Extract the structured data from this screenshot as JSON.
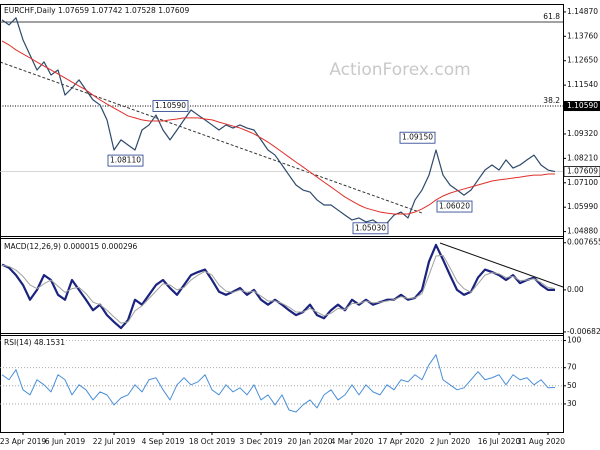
{
  "chart_data": [
    {
      "type": "line",
      "title": "EURCHF,Daily  1.07659 1.07742 1.07528 1.07609",
      "watermark": "ActionForex.com",
      "ylim": [
        1.0468,
        1.1523
      ],
      "yticks": [
        {
          "value": 1.1487,
          "label": "1.14870"
        },
        {
          "value": 1.1376,
          "label": "1.13760"
        },
        {
          "value": 1.1265,
          "label": "1.12650"
        },
        {
          "value": 1.1154,
          "label": "1.11540"
        },
        {
          "value": 1.0932,
          "label": "1.09320"
        },
        {
          "value": 1.0821,
          "label": "1.08210"
        },
        {
          "value": 1.071,
          "label": "1.07100"
        },
        {
          "value": 1.0599,
          "label": "1.05990"
        },
        {
          "value": 1.0488,
          "label": "1.04880"
        }
      ],
      "series": [
        {
          "color": "#2e4a6b",
          "width": 1.2,
          "values": [
            1.1451,
            1.1428,
            1.146,
            1.136,
            1.1291,
            1.1223,
            1.126,
            1.12,
            1.1223,
            1.1109,
            1.1141,
            1.1178,
            1.1132,
            1.1087,
            1.1064,
            1.0996,
            1.0859,
            1.0905,
            1.0882,
            1.0859,
            1.095,
            1.0973,
            1.1018,
            1.095,
            1.0905,
            1.095,
            1.0996,
            1.1041,
            1.1018,
            1.0996,
            1.0973,
            1.095,
            1.0973,
            1.0959,
            1.0973,
            1.0959,
            1.095,
            1.0905,
            1.0859,
            1.0836,
            1.0791,
            1.0745,
            1.07,
            1.0677,
            1.0668,
            1.0632,
            1.0609,
            1.0609,
            1.0586,
            1.0563,
            1.0541,
            1.055,
            1.0532,
            1.0541,
            1.0518,
            1.0527,
            1.0563,
            1.0577,
            1.055,
            1.0632,
            1.0677,
            1.0745,
            1.0859,
            1.0745,
            1.07,
            1.0677,
            1.0654,
            1.0677,
            1.0723,
            1.0768,
            1.0791,
            1.0768,
            1.0814,
            1.0777,
            1.0791,
            1.0814,
            1.0836,
            1.0791,
            1.0768,
            1.0761
          ]
        },
        {
          "color": "#e0302a",
          "width": 1,
          "values": [
            1.1355,
            1.1337,
            1.1314,
            1.1296,
            1.1278,
            1.1259,
            1.1241,
            1.1223,
            1.1205,
            1.1187,
            1.1168,
            1.115,
            1.1132,
            1.1109,
            1.1087,
            1.1068,
            1.105,
            1.1032,
            1.1014,
            1.1005,
            1.0996,
            1.0991,
            1.0991,
            1.0991,
            1.0996,
            1.1,
            1.1005,
            1.1005,
            1.1005,
            1.1,
            1.0996,
            1.0986,
            1.0977,
            1.0968,
            1.0959,
            1.0946,
            1.0932,
            1.0914,
            1.0895,
            1.0873,
            1.085,
            1.0827,
            1.0804,
            1.0782,
            1.0759,
            1.0736,
            1.0713,
            1.0691,
            1.0668,
            1.0645,
            1.0627,
            1.0609,
            1.0595,
            1.0586,
            1.0577,
            1.0572,
            1.0568,
            1.0568,
            1.0568,
            1.0577,
            1.0591,
            1.0609,
            1.0632,
            1.065,
            1.0663,
            1.0673,
            1.0682,
            1.0691,
            1.07,
            1.0709,
            1.0718,
            1.0723,
            1.0727,
            1.0732,
            1.0736,
            1.0741,
            1.0745,
            1.0745,
            1.075,
            1.075
          ]
        }
      ],
      "levels": [
        {
          "label": "61.8",
          "value": 1.1441,
          "style": "solid",
          "color": "#444444"
        },
        {
          "label": "38.2",
          "value": 1.1059,
          "style": "dotted",
          "color": "#000000",
          "price_label": "1.10590"
        }
      ],
      "last_price": {
        "value": 1.07609,
        "label": "1.07609"
      },
      "annotations": [
        {
          "label": "1.10590",
          "value": 1.1059
        },
        {
          "label": "1.08110",
          "value": 1.0811
        },
        {
          "label": "1.09150",
          "value": 1.0915
        },
        {
          "label": "1.06020",
          "value": 1.0602
        },
        {
          "label": "1.05030",
          "value": 1.0503
        }
      ]
    },
    {
      "type": "line",
      "title": "MACD(12,26,9) 0.000015 0.000296",
      "ylim": [
        -0.007,
        0.0081
      ],
      "yticks": [
        0.007655,
        {
          "value": 0,
          "label": "0.00"
        },
        -0.006822
      ],
      "series": [
        {
          "color": "#1a237e",
          "width": 2.2,
          "values": [
            0.0041,
            0.0036,
            0.0024,
            0.0008,
            -0.0016,
            0,
            0.0024,
            0.0016,
            -0.0008,
            -0.0016,
            0.0016,
            0,
            -0.0016,
            -0.0033,
            -0.0024,
            -0.0041,
            -0.0052,
            -0.0062,
            -0.0049,
            -0.0016,
            -0.0024,
            -0.0008,
            0.0008,
            0.0016,
            0.0003,
            -0.0008,
            0.0008,
            0.0024,
            0.0029,
            0.0033,
            0.0016,
            -0.0003,
            -0.0008,
            -0.0003,
            0.0003,
            -0.0008,
            0,
            -0.0016,
            -0.0024,
            -0.0016,
            -0.0024,
            -0.0033,
            -0.0041,
            -0.0036,
            -0.0024,
            -0.0041,
            -0.0046,
            -0.0033,
            -0.0024,
            -0.0033,
            -0.0016,
            -0.0024,
            -0.0016,
            -0.0024,
            -0.002,
            -0.0016,
            -0.0016,
            -0.0008,
            -0.0016,
            -0.0013,
            0,
            0.0046,
            0.0073,
            0.0049,
            0.0024,
            0,
            -0.0008,
            -0.0003,
            0.002,
            0.0033,
            0.0029,
            0.0024,
            0.0016,
            0.0024,
            0.0011,
            0.0016,
            0.002,
            0.0008,
            0,
            0
          ]
        },
        {
          "color": "#a0a0a0",
          "width": 1,
          "values": [
            0.004,
            0.0038,
            0.0032,
            0.0022,
            0.0008,
            0.0002,
            0.001,
            0.0016,
            0.0006,
            -0.0004,
            0.0002,
            0.0004,
            -0.0006,
            -0.002,
            -0.0024,
            -0.0033,
            -0.0044,
            -0.0054,
            -0.0052,
            -0.0034,
            -0.0026,
            -0.0014,
            -0.0002,
            0.001,
            0.0008,
            0,
            0.0004,
            0.0016,
            0.0024,
            0.003,
            0.0024,
            0.0008,
            -0.0002,
            -0.0004,
            0,
            -0.0004,
            -0.0002,
            -0.001,
            -0.0018,
            -0.0018,
            -0.0022,
            -0.0028,
            -0.0036,
            -0.0036,
            -0.003,
            -0.0036,
            -0.0042,
            -0.0038,
            -0.003,
            -0.0032,
            -0.0022,
            -0.0022,
            -0.0018,
            -0.0021,
            -0.002,
            -0.0018,
            -0.0016,
            -0.0011,
            -0.0014,
            -0.0013,
            -0.0006,
            0.0024,
            0.0055,
            0.0056,
            0.0036,
            0.0014,
            0.0002,
            -0.0004,
            0.001,
            0.0024,
            0.0028,
            0.0026,
            0.002,
            0.0022,
            0.0015,
            0.0016,
            0.0018,
            0.0012,
            0.0004,
            0.0002
          ]
        }
      ]
    },
    {
      "type": "line",
      "title": "RSI(14) 48.1531",
      "ylim": [
        -1,
        105
      ],
      "yticks": [
        100,
        70,
        50,
        30
      ],
      "grid": true,
      "categories": [
        null,
        null,
        null,
        "23 Apr 2019",
        null,
        null,
        null,
        null,
        null,
        "6 Jun 2019",
        null,
        null,
        null,
        null,
        null,
        null,
        "22 Jul 2019",
        null,
        null,
        null,
        null,
        null,
        null,
        "4 Sep 2019",
        null,
        null,
        null,
        null,
        null,
        null,
        "18 Oct 2019",
        null,
        null,
        null,
        null,
        null,
        null,
        "3 Dec 2019",
        null,
        null,
        null,
        null,
        null,
        null,
        "20 Jan 2020",
        null,
        null,
        null,
        null,
        null,
        "4 Mar 2020",
        null,
        null,
        null,
        null,
        null,
        null,
        "17 Apr 2020",
        null,
        null,
        null,
        null,
        null,
        null,
        "2 Jun 2020",
        null,
        null,
        null,
        null,
        null,
        null,
        "16 Jul 2020",
        null,
        null,
        null,
        null,
        null,
        null,
        "31 Aug 2020",
        null
      ],
      "series": [
        {
          "color": "#4a8fd8",
          "width": 1,
          "values": [
            62.2,
            56.7,
            67.8,
            45.6,
            40,
            56.7,
            51.1,
            43.3,
            62.2,
            56.7,
            40,
            51.1,
            45.6,
            34.4,
            43.3,
            40,
            28.9,
            36.7,
            40,
            51.1,
            43.3,
            56.7,
            58.9,
            45.6,
            34.4,
            51.1,
            58.9,
            51.1,
            54.4,
            62.2,
            45.6,
            40,
            51.1,
            43.3,
            47.8,
            40,
            51.1,
            34.4,
            40,
            28.9,
            40,
            23.3,
            21.1,
            28.9,
            34.4,
            25.6,
            40,
            45.6,
            34.4,
            40,
            51.1,
            40,
            51.1,
            43.3,
            40,
            51.1,
            45.6,
            56.7,
            54.4,
            62.2,
            56.7,
            73.3,
            84.4,
            56.7,
            51.1,
            45.6,
            47.8,
            56.7,
            65.6,
            56.7,
            58.9,
            62.2,
            51.1,
            62.2,
            56.7,
            58.9,
            51.1,
            56.7,
            47.8,
            48.2
          ]
        }
      ]
    }
  ]
}
